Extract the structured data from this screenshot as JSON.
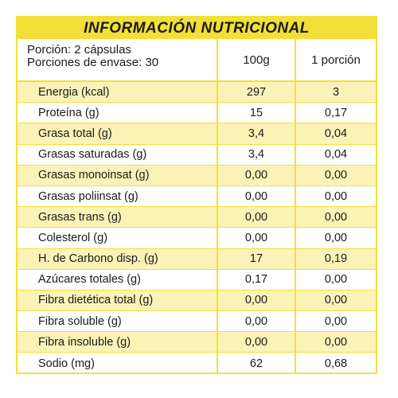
{
  "title": "INFORMACIÓN NUTRICIONAL",
  "serving": {
    "portion": "Porción: 2 cápsulas",
    "servings_per_container": "Porciones de envase: 30"
  },
  "columns": {
    "per_100g": "100g",
    "per_portion": "1 porción"
  },
  "rows": [
    {
      "name": "Energia (kcal)",
      "per_100g": "297",
      "per_portion": "3"
    },
    {
      "name": "Proteína (g)",
      "per_100g": "15",
      "per_portion": "0,17"
    },
    {
      "name": "Grasa total (g)",
      "per_100g": "3,4",
      "per_portion": "0,04"
    },
    {
      "name": "Grasas saturadas (g)",
      "per_100g": "3,4",
      "per_portion": "0,04"
    },
    {
      "name": "Grasas monoinsat (g)",
      "per_100g": "0,00",
      "per_portion": "0,00"
    },
    {
      "name": "Grasas poliinsat (g)",
      "per_100g": "0,00",
      "per_portion": "0,00"
    },
    {
      "name": "Grasas trans (g)",
      "per_100g": "0,00",
      "per_portion": "0,00"
    },
    {
      "name": "Colesterol (g)",
      "per_100g": "0,00",
      "per_portion": "0,00"
    },
    {
      "name": "H. de Carbono disp. (g)",
      "per_100g": "17",
      "per_portion": "0,19"
    },
    {
      "name": "Azúcares totales (g)",
      "per_100g": "0,17",
      "per_portion": "0,00"
    },
    {
      "name": "Fibra dietética total (g)",
      "per_100g": "0,00",
      "per_portion": "0,00"
    },
    {
      "name": "Fibra soluble (g)",
      "per_100g": "0,00",
      "per_portion": "0,00"
    },
    {
      "name": "Fibra insoluble (g)",
      "per_100g": "0,00",
      "per_portion": "0,00"
    },
    {
      "name": "Sodio (mg)",
      "per_100g": "62",
      "per_portion": "0,68"
    }
  ],
  "colors": {
    "accent_yellow": "#f2df37",
    "row_shade": "#fbf2b8"
  }
}
